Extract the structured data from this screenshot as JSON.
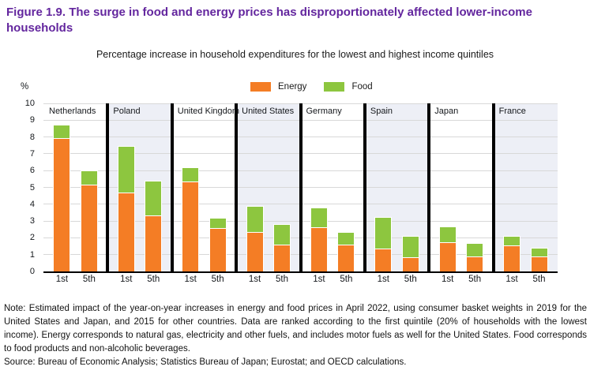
{
  "title": "Figure 1.9. The surge in food and energy prices has disproportionately affected lower-income households",
  "subtitle": "Percentage increase in household expenditures for the lowest and highest income quintiles",
  "note": "Note: Estimated impact of the year-on-year increases in energy and food prices in April 2022, using consumer basket weights in 2019 for the United States and Japan, and 2015 for other countries. Data are ranked according to the first quintile (20% of households with the lowest income). Energy corresponds to natural gas, electricity and other fuels, and includes motor fuels as well for the United States. Food corresponds to food products and non-alcoholic beverages.",
  "source": "Source: Bureau of Economic Analysis; Statistics Bureau of Japan; Eurostat; and OECD calculations.",
  "colors": {
    "title": "#63269E",
    "energy": "#F47D25",
    "food": "#8DC63F",
    "shaded_band": "#EDEFF6",
    "gridline": "#D8D8D8"
  },
  "chart_data": {
    "type": "bar",
    "stacked": true,
    "unit_label": "%",
    "ylim": [
      0,
      10
    ],
    "yticks": [
      0,
      1,
      2,
      3,
      4,
      5,
      6,
      7,
      8,
      9,
      10
    ],
    "grid": true,
    "legend_position": "top-center",
    "legend": [
      {
        "name": "Energy",
        "color": "#F47D25"
      },
      {
        "name": "Food",
        "color": "#8DC63F"
      }
    ],
    "bar_labels": [
      "1st",
      "5th"
    ],
    "groups": [
      {
        "country": "Netherlands",
        "shaded": false,
        "bars": [
          {
            "label": "1st",
            "energy": 7.9,
            "food": 0.85
          },
          {
            "label": "5th",
            "energy": 5.1,
            "food": 0.9
          }
        ]
      },
      {
        "country": "Poland",
        "shaded": true,
        "bars": [
          {
            "label": "1st",
            "energy": 4.65,
            "food": 2.8
          },
          {
            "label": "5th",
            "energy": 3.3,
            "food": 2.1
          }
        ]
      },
      {
        "country": "United Kingdom",
        "shaded": false,
        "bars": [
          {
            "label": "1st",
            "energy": 5.3,
            "food": 0.9
          },
          {
            "label": "5th",
            "energy": 2.55,
            "food": 0.65
          }
        ]
      },
      {
        "country": "United States",
        "shaded": true,
        "bars": [
          {
            "label": "1st",
            "energy": 2.3,
            "food": 1.6
          },
          {
            "label": "5th",
            "energy": 1.55,
            "food": 1.25
          }
        ]
      },
      {
        "country": "Germany",
        "shaded": false,
        "bars": [
          {
            "label": "1st",
            "energy": 2.6,
            "food": 1.2
          },
          {
            "label": "5th",
            "energy": 1.55,
            "food": 0.8
          }
        ]
      },
      {
        "country": "Spain",
        "shaded": true,
        "bars": [
          {
            "label": "1st",
            "energy": 1.3,
            "food": 1.95
          },
          {
            "label": "5th",
            "energy": 0.8,
            "food": 1.3
          }
        ]
      },
      {
        "country": "Japan",
        "shaded": false,
        "bars": [
          {
            "label": "1st",
            "energy": 1.7,
            "food": 1.0
          },
          {
            "label": "5th",
            "energy": 0.85,
            "food": 0.85
          }
        ]
      },
      {
        "country": "France",
        "shaded": true,
        "bars": [
          {
            "label": "1st",
            "energy": 1.5,
            "food": 0.6
          },
          {
            "label": "5th",
            "energy": 0.85,
            "food": 0.55
          }
        ]
      }
    ]
  }
}
